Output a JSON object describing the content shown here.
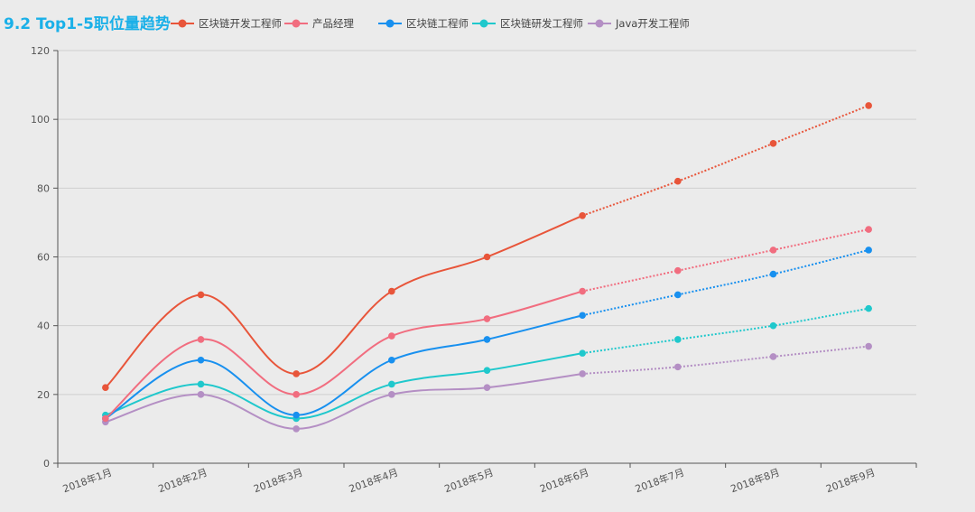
{
  "chart_data": {
    "type": "line",
    "title": "9.2 Top1-5职位量趋势",
    "xlabel": "",
    "ylabel": "",
    "categories": [
      "2018年1月",
      "2018年2月",
      "2018年3月",
      "2018年4月",
      "2018年5月",
      "2018年6月",
      "2018年7月",
      "2018年8月",
      "2018年9月"
    ],
    "ylim": [
      0,
      120
    ],
    "yticks": [
      0,
      20,
      40,
      60,
      80,
      100,
      120
    ],
    "grid": true,
    "legend_position": "top",
    "solid_until_category": "2018年6月",
    "forecast_style": "dotted",
    "series": [
      {
        "name": "区块链开发工程师",
        "color": "#e8553a",
        "values": [
          22,
          49,
          26,
          50,
          60,
          72,
          82,
          93,
          104
        ]
      },
      {
        "name": "产品经理",
        "color": "#f16d7f",
        "values": [
          13,
          36,
          20,
          37,
          42,
          50,
          56,
          62,
          68
        ]
      },
      {
        "name": "区块链工程师",
        "color": "#1890ef",
        "values": [
          13,
          30,
          14,
          30,
          36,
          43,
          49,
          55,
          62
        ]
      },
      {
        "name": "区块链研发工程师",
        "color": "#1fc8cc",
        "values": [
          14,
          23,
          13,
          23,
          27,
          32,
          36,
          40,
          45
        ]
      },
      {
        "name": "Java开发工程师",
        "color": "#b48fc4",
        "values": [
          12,
          20,
          10,
          20,
          22,
          26,
          28,
          31,
          34
        ]
      }
    ]
  }
}
